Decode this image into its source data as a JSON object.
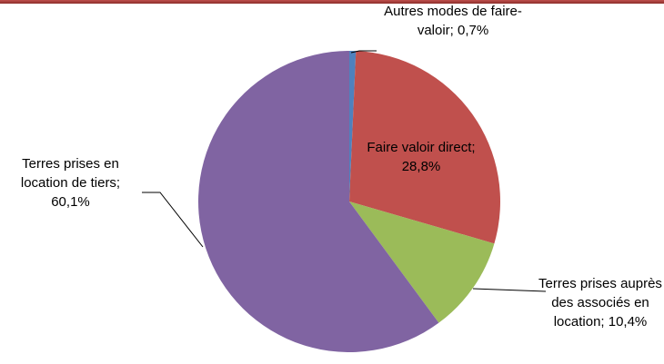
{
  "chart_data": {
    "type": "pie",
    "values": [
      0.7,
      28.8,
      10.4,
      60.1
    ],
    "value_labels": [
      "Autres modes de faire-valoir; 0,7%",
      "Faire valoir direct; 28,8%",
      "Terres prises auprès des associés en location; 10,4%",
      "Terres prises en location de tiers; 60,1%"
    ],
    "colors": [
      "#4f81bd",
      "#c0504d",
      "#9bbb59",
      "#8064a2"
    ]
  }
}
